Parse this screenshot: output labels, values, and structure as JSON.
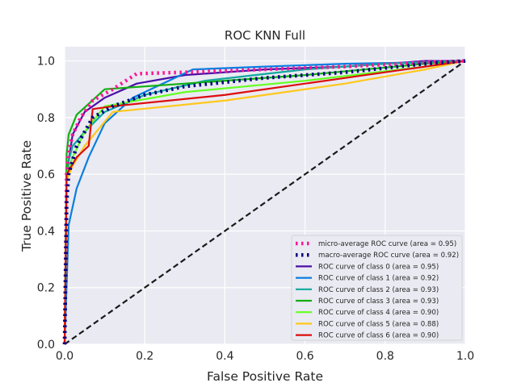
{
  "chart_data": {
    "type": "line",
    "title": "ROC KNN Full",
    "xlabel": "False Positive Rate",
    "ylabel": "True Positive Rate",
    "xlim": [
      0.0,
      1.0
    ],
    "ylim": [
      0.0,
      1.05
    ],
    "xticks": [
      "0.0",
      "0.2",
      "0.4",
      "0.6",
      "0.8",
      "1.0"
    ],
    "yticks": [
      "0.0",
      "0.2",
      "0.4",
      "0.6",
      "0.8",
      "1.0"
    ],
    "grid": true,
    "legend_position": "lower-right",
    "background_color": "#eaeaf2",
    "series": [
      {
        "name": "micro-average ROC curve (area = 0.95)",
        "color": "#ff1493",
        "style": "dotted",
        "x": [
          0.0,
          0.005,
          0.01,
          0.02,
          0.04,
          0.07,
          0.12,
          0.18,
          0.3,
          0.5,
          0.7,
          0.9,
          1.0
        ],
        "y": [
          0.0,
          0.6,
          0.68,
          0.74,
          0.8,
          0.86,
          0.9,
          0.955,
          0.96,
          0.97,
          0.98,
          0.995,
          1.0
        ]
      },
      {
        "name": "macro-average ROC curve (area = 0.92)",
        "color": "#000080",
        "style": "dotted",
        "x": [
          0.0,
          0.005,
          0.01,
          0.03,
          0.07,
          0.12,
          0.2,
          0.3,
          0.5,
          0.7,
          0.9,
          1.0
        ],
        "y": [
          0.0,
          0.5,
          0.6,
          0.7,
          0.8,
          0.84,
          0.88,
          0.91,
          0.94,
          0.96,
          0.99,
          1.0
        ]
      },
      {
        "name": "ROC curve of class 0 (area = 0.95)",
        "color": "#4b0fa8",
        "style": "solid",
        "x": [
          0.0,
          0.005,
          0.02,
          0.05,
          0.1,
          0.18,
          0.3,
          0.5,
          0.7,
          0.9,
          1.0
        ],
        "y": [
          0.0,
          0.6,
          0.74,
          0.82,
          0.87,
          0.92,
          0.95,
          0.97,
          0.98,
          1.0,
          1.0
        ]
      },
      {
        "name": "ROC curve of class 1 (area = 0.92)",
        "color": "#0a7ee0",
        "style": "solid",
        "x": [
          0.0,
          0.01,
          0.03,
          0.06,
          0.1,
          0.17,
          0.32,
          0.5,
          0.7,
          0.9,
          1.0
        ],
        "y": [
          0.0,
          0.42,
          0.55,
          0.66,
          0.78,
          0.87,
          0.97,
          0.98,
          0.99,
          0.995,
          1.0
        ]
      },
      {
        "name": "ROC curve of class 2 (area = 0.93)",
        "color": "#10a8a0",
        "style": "solid",
        "x": [
          0.0,
          0.005,
          0.02,
          0.05,
          0.1,
          0.2,
          0.35,
          0.6,
          0.8,
          1.0
        ],
        "y": [
          0.0,
          0.62,
          0.7,
          0.75,
          0.82,
          0.88,
          0.93,
          0.97,
          0.99,
          1.0
        ]
      },
      {
        "name": "ROC curve of class 3 (area = 0.93)",
        "color": "#10b010",
        "style": "solid",
        "x": [
          0.0,
          0.005,
          0.01,
          0.03,
          0.1,
          0.3,
          0.6,
          0.9,
          1.0
        ],
        "y": [
          0.0,
          0.67,
          0.74,
          0.81,
          0.9,
          0.92,
          0.95,
          0.99,
          1.0
        ]
      },
      {
        "name": "ROC curve of class 4 (area = 0.90)",
        "color": "#66ff22",
        "style": "solid",
        "x": [
          0.0,
          0.005,
          0.02,
          0.05,
          0.1,
          0.3,
          0.6,
          0.9,
          1.0
        ],
        "y": [
          0.0,
          0.6,
          0.66,
          0.75,
          0.84,
          0.89,
          0.93,
          0.98,
          1.0
        ]
      },
      {
        "name": "ROC curve of class 5 (area = 0.88)",
        "color": "#ffc81a",
        "style": "solid",
        "x": [
          0.0,
          0.005,
          0.02,
          0.05,
          0.12,
          0.4,
          0.7,
          0.9,
          1.0
        ],
        "y": [
          0.0,
          0.58,
          0.63,
          0.7,
          0.82,
          0.86,
          0.92,
          0.97,
          1.0
        ]
      },
      {
        "name": "ROC curve of class 6 (area = 0.90)",
        "color": "#dd0c0c",
        "style": "solid",
        "x": [
          0.0,
          0.005,
          0.03,
          0.06,
          0.07,
          0.12,
          0.4,
          0.7,
          1.0
        ],
        "y": [
          0.0,
          0.6,
          0.66,
          0.7,
          0.83,
          0.84,
          0.88,
          0.94,
          1.0
        ]
      },
      {
        "name": "",
        "color": "#1a1a1a",
        "style": "dashed",
        "x": [
          0.0,
          1.0
        ],
        "y": [
          0.0,
          1.0
        ]
      }
    ]
  }
}
